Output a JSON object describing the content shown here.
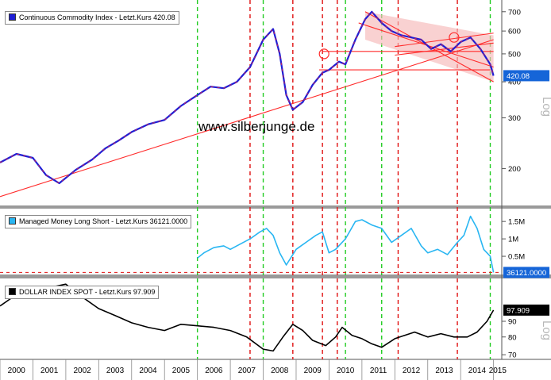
{
  "watermark": "www.silberjunge.de",
  "colors": {
    "commodity": "#1f1fd6",
    "commodity_up": "#d61f4a",
    "money": "#29b6f2",
    "dollar": "#000000",
    "red_line": "#ff2a2a",
    "red_vline": "#e01010",
    "green_vline": "#22cc22",
    "channel_fill": "#f6b8b8",
    "panel_bg": "#ffffff",
    "axis_badge_blue": "#1565d8"
  },
  "chart_data": [
    {
      "type": "line",
      "panel": "top",
      "legend": "Continuous Commodity Index - Letzt.Kurs  420.08",
      "last_value": "420.08",
      "scale_label": "Log",
      "y_ticks": [
        "700",
        "600",
        "500",
        "400",
        "300",
        "200"
      ],
      "y_tick_values": [
        700,
        600,
        500,
        400,
        300,
        200
      ],
      "ylim": [
        150,
        740
      ],
      "x": [
        2000.0,
        2000.5,
        2001.0,
        2001.4,
        2001.8,
        2002.3,
        2002.8,
        2003.2,
        2003.6,
        2004.0,
        2004.5,
        2005.0,
        2005.5,
        2006.0,
        2006.4,
        2006.8,
        2007.2,
        2007.6,
        2008.0,
        2008.3,
        2008.5,
        2008.7,
        2008.9,
        2009.2,
        2009.5,
        2009.8,
        2010.0,
        2010.3,
        2010.5,
        2010.8,
        2011.1,
        2011.3,
        2011.6,
        2011.9,
        2012.2,
        2012.5,
        2012.8,
        2013.1,
        2013.4,
        2013.7,
        2014.0,
        2014.3,
        2014.6,
        2014.9,
        2015.0
      ],
      "values": [
        210,
        225,
        218,
        190,
        178,
        198,
        215,
        235,
        250,
        268,
        285,
        295,
        330,
        360,
        385,
        380,
        400,
        450,
        560,
        610,
        500,
        360,
        320,
        340,
        390,
        430,
        440,
        470,
        460,
        560,
        660,
        700,
        640,
        600,
        580,
        570,
        560,
        520,
        540,
        510,
        550,
        570,
        520,
        460,
        420
      ]
    },
    {
      "type": "line",
      "panel": "middle",
      "legend": "Managed Money Long Short - Letzt.Kurs  36121.0000",
      "last_value": "36121.0000",
      "y_ticks": [
        "1.5M",
        "1M",
        "0.5M"
      ],
      "y_tick_values": [
        1500000,
        1000000,
        500000
      ],
      "ylim": [
        0,
        1800000
      ],
      "x": [
        2006.0,
        2006.2,
        2006.5,
        2006.8,
        2007.0,
        2007.3,
        2007.6,
        2007.9,
        2008.1,
        2008.3,
        2008.5,
        2008.7,
        2009.0,
        2009.3,
        2009.6,
        2009.8,
        2010.0,
        2010.2,
        2010.5,
        2010.8,
        2011.0,
        2011.3,
        2011.6,
        2011.9,
        2012.2,
        2012.5,
        2012.8,
        2013.0,
        2013.3,
        2013.6,
        2013.9,
        2014.1,
        2014.3,
        2014.5,
        2014.7,
        2014.9,
        2015.0
      ],
      "values": [
        450000,
        600000,
        750000,
        800000,
        700000,
        850000,
        1000000,
        1200000,
        1300000,
        1100000,
        600000,
        250000,
        700000,
        900000,
        1100000,
        1200000,
        600000,
        700000,
        1000000,
        1500000,
        1550000,
        1400000,
        1300000,
        900000,
        1100000,
        1300000,
        800000,
        600000,
        700000,
        550000,
        900000,
        1100000,
        1650000,
        1300000,
        700000,
        500000,
        36121
      ]
    },
    {
      "type": "line",
      "panel": "bottom",
      "legend": "DOLLAR INDEX SPOT - Letzt.Kurs  97.909",
      "last_value": "97.909",
      "scale_label": "Log",
      "y_ticks": [
        "90",
        "80",
        "70"
      ],
      "y_tick_values": [
        90,
        80,
        70
      ],
      "ylim": [
        68,
        122
      ],
      "x": [
        2000.0,
        2000.5,
        2001.0,
        2001.5,
        2002.0,
        2002.5,
        2003.0,
        2003.5,
        2004.0,
        2004.5,
        2005.0,
        2005.5,
        2006.0,
        2006.5,
        2007.0,
        2007.5,
        2008.0,
        2008.3,
        2008.6,
        2008.9,
        2009.2,
        2009.5,
        2009.9,
        2010.2,
        2010.4,
        2010.7,
        2011.0,
        2011.3,
        2011.6,
        2012.0,
        2012.3,
        2012.6,
        2013.0,
        2013.4,
        2013.8,
        2014.2,
        2014.5,
        2014.8,
        2015.0
      ],
      "values": [
        101,
        110,
        114,
        116,
        119,
        108,
        99,
        94,
        89,
        86,
        84,
        88,
        87,
        86,
        84,
        80,
        73,
        72,
        80,
        88,
        84,
        78,
        75,
        80,
        86,
        81,
        79,
        76,
        74,
        79,
        81,
        83,
        80,
        82,
        80,
        80,
        83,
        90,
        97.909
      ]
    }
  ],
  "x_axis": {
    "ticks": [
      "2000",
      "2001",
      "2002",
      "2003",
      "2004",
      "2005",
      "2006",
      "2007",
      "2008",
      "2009",
      "2010",
      "2011",
      "2012",
      "2013",
      "2014",
      "2015"
    ],
    "range": [
      2000,
      2015.25
    ]
  },
  "vertical_lines": {
    "green": [
      2006.0,
      2008.0,
      2010.5,
      2011.6,
      2014.9
    ],
    "red": [
      2007.6,
      2008.9,
      2009.8,
      2010.25,
      2012.1,
      2013.9
    ]
  },
  "trend_lines": [
    {
      "from": [
        2000.0,
        160
      ],
      "to": [
        2015.0,
        560
      ]
    },
    {
      "from": [
        2009.8,
        510
      ],
      "to": [
        2015.0,
        510
      ]
    },
    {
      "from": [
        2011.1,
        700
      ],
      "to": [
        2015.0,
        400
      ]
    },
    {
      "from": [
        2010.9,
        640
      ],
      "to": [
        2015.0,
        450
      ]
    },
    {
      "from": [
        2012.0,
        530
      ],
      "to": [
        2015.0,
        590
      ]
    },
    {
      "from": [
        2012.0,
        495
      ],
      "to": [
        2015.0,
        545
      ]
    },
    {
      "from": [
        2009.7,
        440
      ],
      "to": [
        2014.9,
        440
      ]
    }
  ],
  "channel_polygon": [
    [
      2011.1,
      700
    ],
    [
      2015.0,
      580
    ],
    [
      2015.0,
      400
    ],
    [
      2011.1,
      560
    ]
  ],
  "circles": [
    {
      "at": [
        2009.85,
        500
      ]
    },
    {
      "at": [
        2013.8,
        570
      ]
    }
  ]
}
